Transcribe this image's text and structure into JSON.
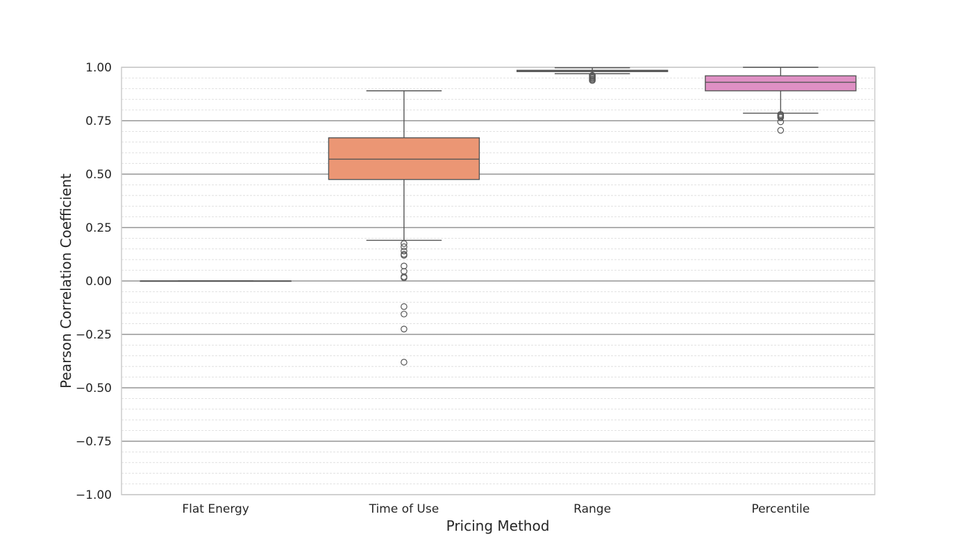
{
  "chart_data": {
    "type": "box",
    "xlabel": "Pricing Method",
    "ylabel": "Pearson Correlation Coefficient",
    "ylim": [
      -1.0,
      1.0
    ],
    "yticks": [
      "−1.00",
      "−0.75",
      "−0.50",
      "−0.25",
      "0.00",
      "0.25",
      "0.50",
      "0.75",
      "1.00"
    ],
    "ytick_values": [
      -1.0,
      -0.75,
      -0.5,
      -0.25,
      0.0,
      0.25,
      0.5,
      0.75,
      1.0
    ],
    "grid": {
      "major": true,
      "minor": true
    },
    "categories": [
      "Flat Energy",
      "Time of Use",
      "Range",
      "Percentile"
    ],
    "boxes": [
      {
        "category": "Flat Energy",
        "color": "#66c2a5",
        "whisker_low": 0.0,
        "q1": 0.0,
        "median": 0.0,
        "q3": 0.0,
        "whisker_high": 0.0,
        "outliers": []
      },
      {
        "category": "Time of Use",
        "color": "#eb9674",
        "whisker_low": 0.19,
        "q1": 0.475,
        "median": 0.57,
        "q3": 0.67,
        "whisker_high": 0.89,
        "outliers": [
          0.175,
          0.16,
          0.14,
          0.125,
          0.12,
          0.07,
          0.045,
          0.02,
          0.015,
          -0.12,
          -0.155,
          -0.225,
          -0.38
        ]
      },
      {
        "category": "Range",
        "color": "#8da0cb",
        "whisker_low": 0.97,
        "q1": 0.98,
        "median": 0.983,
        "q3": 0.986,
        "whisker_high": 0.998,
        "outliers": [
          0.962,
          0.958,
          0.953,
          0.948,
          0.943,
          0.938
        ]
      },
      {
        "category": "Percentile",
        "color": "#df90c4",
        "whisker_low": 0.785,
        "q1": 0.89,
        "median": 0.93,
        "q3": 0.96,
        "whisker_high": 1.0,
        "outliers": [
          0.78,
          0.775,
          0.77,
          0.765,
          0.745,
          0.705
        ]
      }
    ]
  }
}
